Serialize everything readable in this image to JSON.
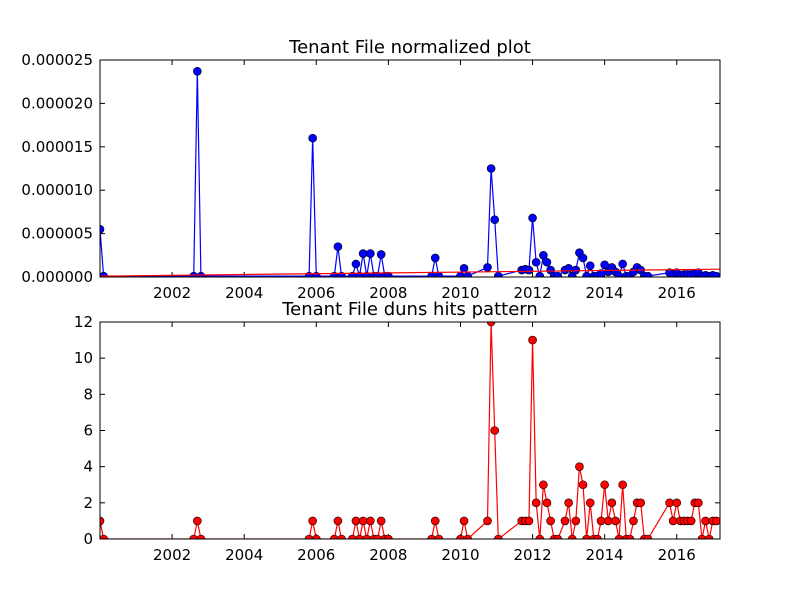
{
  "chart_data": [
    {
      "type": "line",
      "title": "Tenant File normalized plot",
      "xlabel": "",
      "ylabel": "",
      "xlim": [
        2000.0,
        2017.2
      ],
      "ylim": [
        0,
        2.5e-05
      ],
      "grid": false,
      "x_ticks": [
        2002,
        2004,
        2006,
        2008,
        2010,
        2012,
        2014,
        2016
      ],
      "y_ticks": [
        0,
        5e-06,
        1e-05,
        1.5e-05,
        2e-05,
        2.5e-05
      ],
      "y_tick_labels": [
        "0.000000",
        "0.000005",
        "0.000010",
        "0.000015",
        "0.000020",
        "0.000025"
      ],
      "colors": {
        "series": "#0000ff",
        "trend": "#ff0000"
      },
      "series": [
        {
          "x": [
            2000.0,
            2000.1,
            2002.6,
            2002.7,
            2002.8,
            2005.8,
            2005.9,
            2006.0,
            2006.5,
            2006.6,
            2006.7,
            2007.0,
            2007.1,
            2007.2,
            2007.3,
            2007.4,
            2007.5,
            2007.6,
            2007.7,
            2007.8,
            2007.9,
            2008.0,
            2009.2,
            2009.3,
            2009.4,
            2010.0,
            2010.1,
            2010.2,
            2010.75,
            2010.85,
            2010.95,
            2011.05,
            2011.7,
            2011.8,
            2011.9,
            2012.0,
            2012.1,
            2012.2,
            2012.3,
            2012.4,
            2012.5,
            2012.6,
            2012.7,
            2012.9,
            2013.0,
            2013.1,
            2013.2,
            2013.3,
            2013.4,
            2013.5,
            2013.6,
            2013.7,
            2013.8,
            2013.9,
            2014.0,
            2014.1,
            2014.2,
            2014.3,
            2014.4,
            2014.5,
            2014.6,
            2014.7,
            2014.8,
            2014.9,
            2015.0,
            2015.1,
            2015.2,
            2015.8,
            2015.9,
            2016.0,
            2016.1,
            2016.2,
            2016.3,
            2016.4,
            2016.5,
            2016.6,
            2016.7,
            2016.8,
            2016.9,
            2017.0,
            2017.1
          ],
          "values": [
            5.5e-06,
            1e-07,
            1e-07,
            2.37e-05,
            1e-07,
            1e-07,
            1.6e-05,
            1e-07,
            1e-07,
            3.5e-06,
            1e-07,
            1e-07,
            1.5e-06,
            1e-07,
            2.7e-06,
            1e-07,
            2.7e-06,
            1e-07,
            1e-07,
            2.6e-06,
            1e-07,
            1e-07,
            1e-07,
            2.2e-06,
            1e-07,
            1e-07,
            1e-06,
            1e-07,
            1.1e-06,
            1.25e-05,
            6.6e-06,
            1e-07,
            8e-07,
            9e-07,
            8e-07,
            6.8e-06,
            1.7e-06,
            1e-07,
            2.5e-06,
            1.7e-06,
            8e-07,
            1e-07,
            1e-07,
            8e-07,
            1e-06,
            1e-07,
            8e-07,
            2.8e-06,
            2.2e-06,
            1e-07,
            1.3e-06,
            1e-07,
            1e-07,
            4e-07,
            1.4e-06,
            6e-07,
            1.1e-06,
            6e-07,
            1e-07,
            1.5e-06,
            1e-07,
            1e-07,
            6e-07,
            1.1e-06,
            8e-07,
            1e-07,
            1e-07,
            5e-07,
            2e-07,
            5e-07,
            2e-07,
            3e-07,
            3e-07,
            3e-07,
            4e-07,
            5e-07,
            1e-07,
            2e-07,
            1e-07,
            2e-07,
            1e-07
          ]
        },
        {
          "x": [
            2000.0,
            2017.2
          ],
          "values": [
            1e-07,
            9e-07
          ]
        }
      ]
    },
    {
      "type": "line",
      "title": "Tenant File duns hits pattern",
      "xlabel": "",
      "ylabel": "",
      "xlim": [
        2000.0,
        2017.2
      ],
      "ylim": [
        0,
        12
      ],
      "grid": false,
      "x_ticks": [
        2002,
        2004,
        2006,
        2008,
        2010,
        2012,
        2014,
        2016
      ],
      "y_ticks": [
        0,
        2,
        4,
        6,
        8,
        10,
        12
      ],
      "y_tick_labels": [
        "0",
        "2",
        "4",
        "6",
        "8",
        "10",
        "12"
      ],
      "colors": {
        "series": "#ff0000"
      },
      "series": [
        {
          "x": [
            2000.0,
            2000.1,
            2002.6,
            2002.7,
            2002.8,
            2005.8,
            2005.9,
            2006.0,
            2006.5,
            2006.6,
            2006.7,
            2007.0,
            2007.1,
            2007.2,
            2007.3,
            2007.4,
            2007.5,
            2007.6,
            2007.7,
            2007.8,
            2007.9,
            2008.0,
            2009.2,
            2009.3,
            2009.4,
            2010.0,
            2010.1,
            2010.2,
            2010.75,
            2010.85,
            2010.95,
            2011.05,
            2011.7,
            2011.8,
            2011.9,
            2012.0,
            2012.1,
            2012.2,
            2012.3,
            2012.4,
            2012.5,
            2012.6,
            2012.7,
            2012.9,
            2013.0,
            2013.1,
            2013.2,
            2013.3,
            2013.4,
            2013.5,
            2013.6,
            2013.7,
            2013.8,
            2013.9,
            2014.0,
            2014.1,
            2014.2,
            2014.3,
            2014.4,
            2014.5,
            2014.6,
            2014.7,
            2014.8,
            2014.9,
            2015.0,
            2015.1,
            2015.2,
            2015.8,
            2015.9,
            2016.0,
            2016.1,
            2016.2,
            2016.3,
            2016.4,
            2016.5,
            2016.6,
            2016.7,
            2016.8,
            2016.9,
            2017.0,
            2017.1
          ],
          "values": [
            1,
            0,
            0,
            1,
            0,
            0,
            1,
            0,
            0,
            1,
            0,
            0,
            1,
            0,
            1,
            0,
            1,
            0,
            0,
            1,
            0,
            0,
            0,
            1,
            0,
            0,
            1,
            0,
            1,
            12,
            6,
            0,
            1,
            1,
            1,
            11,
            2,
            0,
            3,
            2,
            1,
            0,
            0,
            1,
            2,
            0,
            1,
            4,
            3,
            0,
            2,
            0,
            0,
            1,
            3,
            1,
            2,
            1,
            0,
            3,
            0,
            0,
            1,
            2,
            2,
            0,
            0,
            2,
            1,
            2,
            1,
            1,
            1,
            1,
            2,
            2,
            0,
            1,
            0,
            1,
            1
          ]
        }
      ]
    }
  ]
}
